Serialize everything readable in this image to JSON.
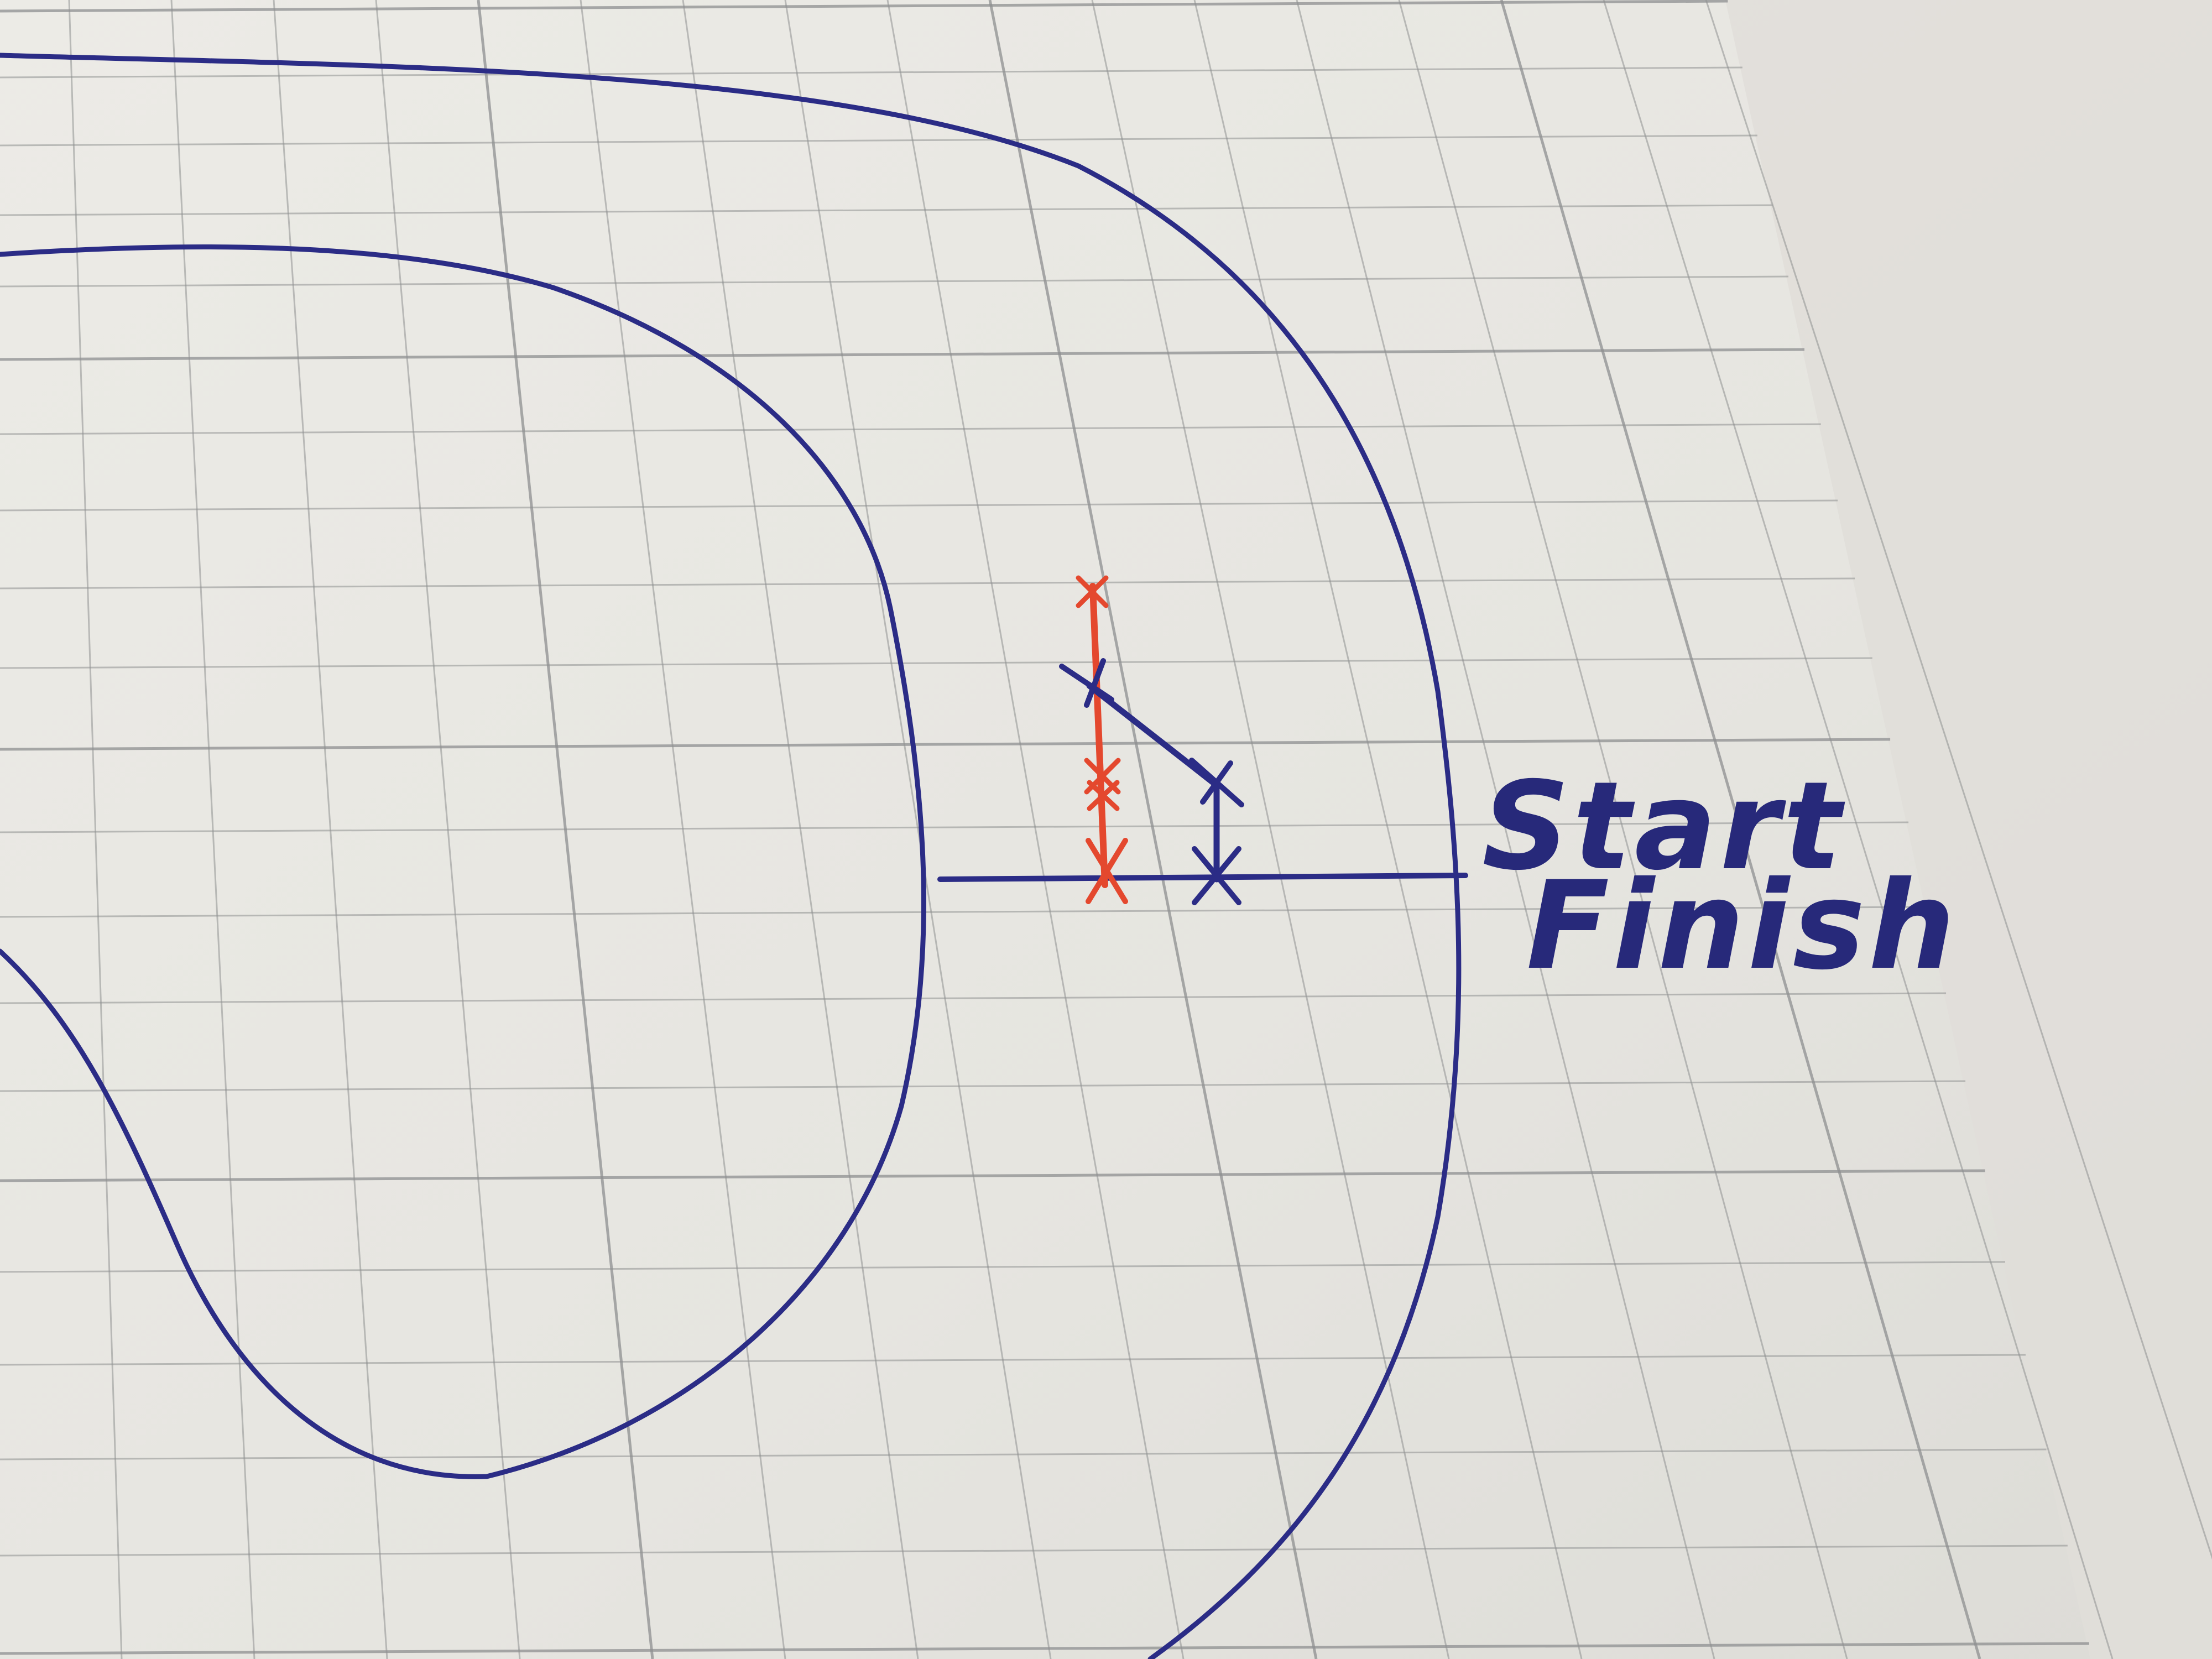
{
  "photo": {
    "subject": "graph-paper-race-track-sketch",
    "colors": {
      "desk": "#d9d7d2",
      "paper": "#e9e8e3",
      "grid_line": "#8e8f90",
      "blue_ink": "#2b2c86",
      "red_ink": "#e4482e"
    },
    "labels": {
      "start": "Start",
      "finish": "Finish"
    }
  }
}
